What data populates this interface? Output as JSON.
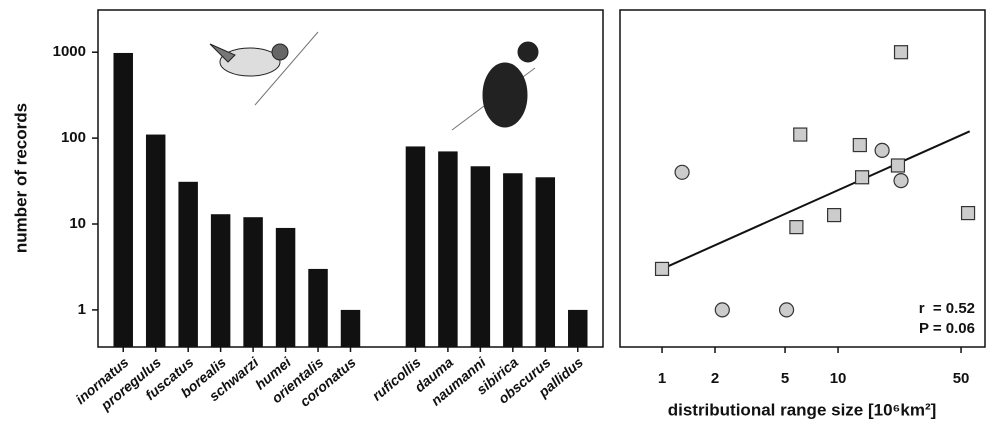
{
  "chart_data": [
    {
      "type": "bar",
      "y_label": "number of records",
      "log_y": true,
      "categories": [
        "inornatus",
        "proregulus",
        "fuscatus",
        "borealis",
        "schwarzi",
        "humei",
        "orientalis",
        "coronatus",
        null,
        "ruficollis",
        "dauma",
        "naumanni",
        "sibirica",
        "obscurus",
        "pallidus"
      ],
      "values": [
        980,
        110,
        31,
        13,
        12,
        9,
        3,
        1,
        null,
        80,
        70,
        47,
        39,
        35,
        1
      ],
      "color": "#111111",
      "ylim": [
        0.37,
        3100
      ],
      "yticks": [
        1,
        10,
        100,
        1000
      ]
    },
    {
      "type": "scatter",
      "x_label": "distributional range size [10⁶km²]",
      "log_x": true,
      "log_y": true,
      "series": [
        {
          "marker": "square",
          "color": "#cccccc",
          "x": [
            1,
            22.8,
            6.1,
            13.3,
            21.9,
            13.7,
            9.5,
            5.8,
            54.8
          ],
          "values": [
            3,
            1000,
            110,
            83,
            48,
            35,
            12.7,
            9.2,
            13.4
          ]
        },
        {
          "marker": "circle",
          "color": "#cccccc",
          "x": [
            1.3,
            17.8,
            22.8,
            2.2,
            5.1
          ],
          "values": [
            40,
            72,
            32,
            1,
            1
          ]
        }
      ],
      "fit": {
        "x": [
          1,
          56
        ],
        "values": [
          3,
          120
        ]
      },
      "annotations": [
        "r  = 0.52",
        "P = 0.06"
      ],
      "xlim": [
        0.577,
        68.4
      ],
      "xticks": [
        1,
        2,
        5,
        10,
        50
      ],
      "ylim": [
        0.37,
        3100
      ]
    }
  ]
}
